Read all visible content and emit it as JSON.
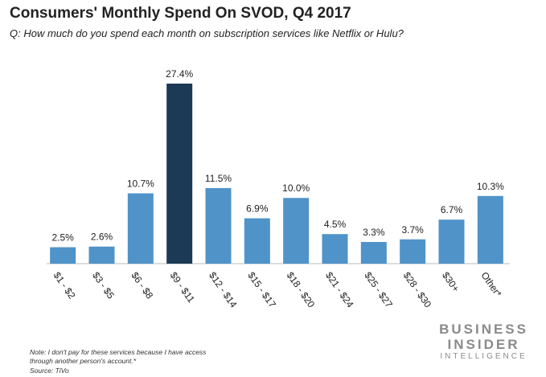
{
  "chart_data": {
    "type": "bar",
    "title": "Consumers' Monthly Spend On SVOD, Q4 2017",
    "subtitle": "Q: How much do you spend each month on subscription services like Netflix or Hulu?",
    "categories": [
      "$1 - $2",
      "$3 - $5",
      "$6 - $8",
      "$9 - $11",
      "$12 - $14",
      "$15 - $17",
      "$18 - $20",
      "$21 - $24",
      "$25 - $27",
      "$28 - $30",
      "$30+",
      "Other*"
    ],
    "values": [
      2.5,
      2.6,
      10.7,
      27.4,
      11.5,
      6.9,
      10.0,
      4.5,
      3.3,
      3.7,
      6.7,
      10.3
    ],
    "value_labels": [
      "2.5%",
      "2.6%",
      "10.7%",
      "27.4%",
      "11.5%",
      "6.9%",
      "10.0%",
      "4.5%",
      "3.3%",
      "3.7%",
      "6.7%",
      "10.3%"
    ],
    "colors": [
      "#4f93c9",
      "#4f93c9",
      "#4f93c9",
      "#1c3a56",
      "#4f93c9",
      "#4f93c9",
      "#4f93c9",
      "#4f93c9",
      "#4f93c9",
      "#4f93c9",
      "#4f93c9",
      "#4f93c9"
    ],
    "note": "Note: I don't pay for these services because I have access through another person's account.*",
    "source": "Source: TiVo",
    "logo": [
      "BUSINESS",
      "INSIDER",
      "INTELLIGENCE"
    ]
  }
}
